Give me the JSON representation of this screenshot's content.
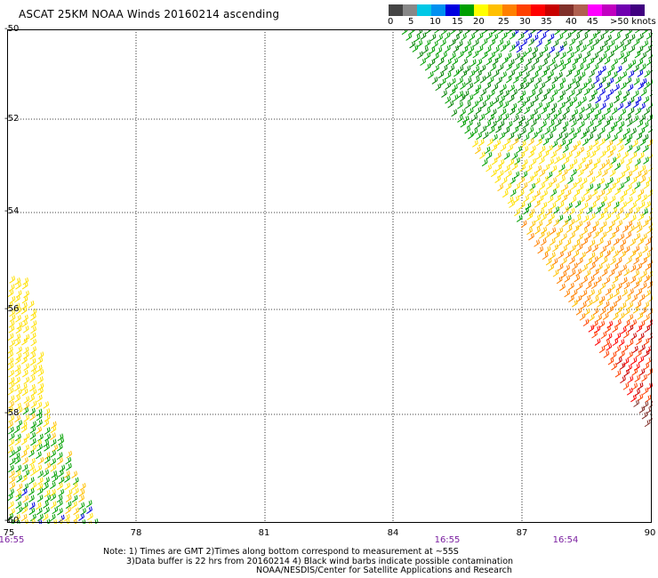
{
  "title": "ASCAT 25KM NOAA Winds 20160214 ascending",
  "colorbar": {
    "unit": "knots",
    "labels": [
      "0",
      "5",
      "10",
      "15",
      "20",
      "25",
      "30",
      "35",
      "40",
      "45",
      ">50 knots"
    ],
    "colors": [
      "#444444",
      "#888888",
      "#00c8e6",
      "#0090f0",
      "#0000e0",
      "#00a000",
      "#ffff00",
      "#ffc000",
      "#ff8000",
      "#ff4000",
      "#ff0000",
      "#c80000",
      "#80302a",
      "#b06050",
      "#ff00ff",
      "#c000c0",
      "#7000b0",
      "#400080"
    ]
  },
  "axes": {
    "lat_labels": [
      "-50",
      "-52",
      "-54",
      "-56",
      "-58",
      "-60"
    ],
    "lon_labels": [
      "75",
      "78",
      "81",
      "84",
      "87",
      "90"
    ]
  },
  "pass_times": [
    {
      "label": "16:55",
      "lon": 75
    },
    {
      "label": "16:55",
      "lon": 85.2
    },
    {
      "label": "16:54",
      "lon": 88
    }
  ],
  "notes": [
    "Note: 1) Times are GMT 2)Times along bottom correspond to measurement at ~55S",
    "3)Data buffer is 22 hrs from 20160214 4) Black wind barbs indicate possible contamination",
    "NOAA/NESDIS/Center for Satellite Applications and Research"
  ]
}
